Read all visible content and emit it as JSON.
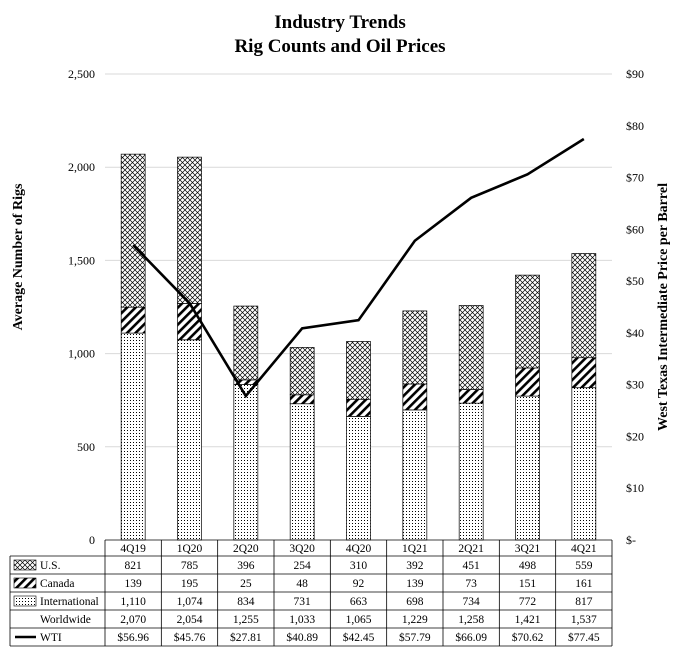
{
  "chart_data": {
    "type": "bar",
    "title": "Industry Trends",
    "subtitle": "Rig Counts and Oil Prices",
    "ylabel": "Average Number of Rigs",
    "y2label": "West Texas Intermediate Price per Barrel",
    "ylim": [
      0,
      2500
    ],
    "y2lim": [
      0,
      90
    ],
    "y_ticks": [
      "0",
      "500",
      "1,000",
      "1,500",
      "2,000",
      "2,500"
    ],
    "y2_ticks": [
      "$-",
      "$10",
      "$20",
      "$30",
      "$40",
      "$50",
      "$60",
      "$70",
      "$80",
      "$90"
    ],
    "grid": true,
    "stacked": true,
    "categories": [
      "4Q19",
      "1Q20",
      "2Q20",
      "3Q20",
      "4Q20",
      "1Q21",
      "2Q21",
      "3Q21",
      "4Q21"
    ],
    "series": [
      {
        "name": "International",
        "values": [
          1110,
          1074,
          834,
          731,
          663,
          698,
          734,
          772,
          817
        ],
        "labels": [
          "1,110",
          "1,074",
          "834",
          "731",
          "663",
          "698",
          "734",
          "772",
          "817"
        ],
        "pattern": "dots"
      },
      {
        "name": "Canada",
        "values": [
          139,
          195,
          25,
          48,
          92,
          139,
          73,
          151,
          161
        ],
        "labels": [
          "139",
          "195",
          "25",
          "48",
          "92",
          "139",
          "73",
          "151",
          "161"
        ],
        "pattern": "diagonal"
      },
      {
        "name": "U.S.",
        "values": [
          821,
          785,
          396,
          254,
          310,
          392,
          451,
          498,
          559
        ],
        "labels": [
          "821",
          "785",
          "396",
          "254",
          "310",
          "392",
          "451",
          "498",
          "559"
        ],
        "pattern": "crosshatch"
      }
    ],
    "totals": {
      "name": "Worldwide",
      "values": [
        2070,
        2054,
        1255,
        1033,
        1065,
        1229,
        1258,
        1421,
        1537
      ],
      "labels": [
        "2,070",
        "2,054",
        "1,255",
        "1,033",
        "1,065",
        "1,229",
        "1,258",
        "1,421",
        "1,537"
      ]
    },
    "line": {
      "name": "WTI",
      "axis": "right",
      "values": [
        56.96,
        45.76,
        27.81,
        40.89,
        42.45,
        57.79,
        66.09,
        70.62,
        77.45
      ],
      "labels": [
        "$56.96",
        "$45.76",
        "$27.81",
        "$40.89",
        "$42.45",
        "$57.79",
        "$66.09",
        "$70.62",
        "$77.45"
      ]
    },
    "table_rows": [
      "U.S.",
      "Canada",
      "International",
      "Worldwide",
      "WTI"
    ],
    "legend": "data-table",
    "colors": {
      "ink": "#000000",
      "grid": "#d9d9d9",
      "background": "#ffffff"
    }
  }
}
